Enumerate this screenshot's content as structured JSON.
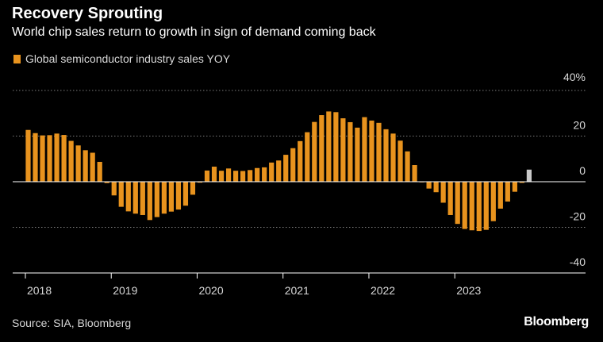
{
  "title": "Recovery Sprouting",
  "subtitle": "World chip sales return to growth in sign of demand coming back",
  "source": "Source: SIA, Bloomberg",
  "brand": "Bloomberg",
  "colors": {
    "bar": "#e8931e",
    "latest_bar": "#c8c8c8",
    "background": "#000000"
  },
  "chart_data": {
    "type": "bar",
    "title": "Recovery Sprouting",
    "subtitle": "World chip sales return to growth in sign of demand coming back",
    "xlabel": "",
    "ylabel": "",
    "legend": [
      "Global semiconductor industry sales YOY"
    ],
    "legend_position": "top-left",
    "y_axis_position": "right",
    "y_unit": "%",
    "ylim": [
      -40,
      40
    ],
    "yticks": [
      40,
      20,
      0,
      -20,
      -40
    ],
    "ytick_labels": [
      "40%",
      "20",
      "0",
      "-20",
      "-40"
    ],
    "x_start": "2018-01",
    "xticks": [
      "2018",
      "2019",
      "2020",
      "2021",
      "2022",
      "2023"
    ],
    "grid": true,
    "series": [
      {
        "name": "Global semiconductor industry sales YOY",
        "values": [
          22.7,
          21.3,
          20.3,
          20.4,
          21.1,
          20.5,
          17.9,
          15.9,
          13.8,
          12.7,
          8.7,
          -0.6,
          -6.0,
          -11.0,
          -13.0,
          -14.0,
          -14.6,
          -16.8,
          -15.5,
          -14.0,
          -13.1,
          -12.2,
          -10.5,
          -5.7,
          -0.4,
          4.9,
          6.6,
          4.8,
          5.8,
          4.8,
          4.7,
          5.1,
          6.0,
          6.3,
          8.4,
          9.3,
          11.8,
          14.7,
          17.8,
          21.7,
          26.2,
          29.2,
          30.8,
          30.5,
          27.8,
          26.1,
          23.7,
          28.3,
          26.8,
          25.8,
          23.0,
          21.1,
          18.0,
          13.3,
          7.3,
          -0.1,
          -3.0,
          -4.6,
          -9.2,
          -14.6,
          -18.5,
          -20.7,
          -21.3,
          -21.6,
          -21.1,
          -17.3,
          -11.8,
          -8.7,
          -4.4,
          -0.5,
          5.3
        ],
        "latest_value": 5.3,
        "latest_color": "#c8c8c8"
      }
    ]
  }
}
